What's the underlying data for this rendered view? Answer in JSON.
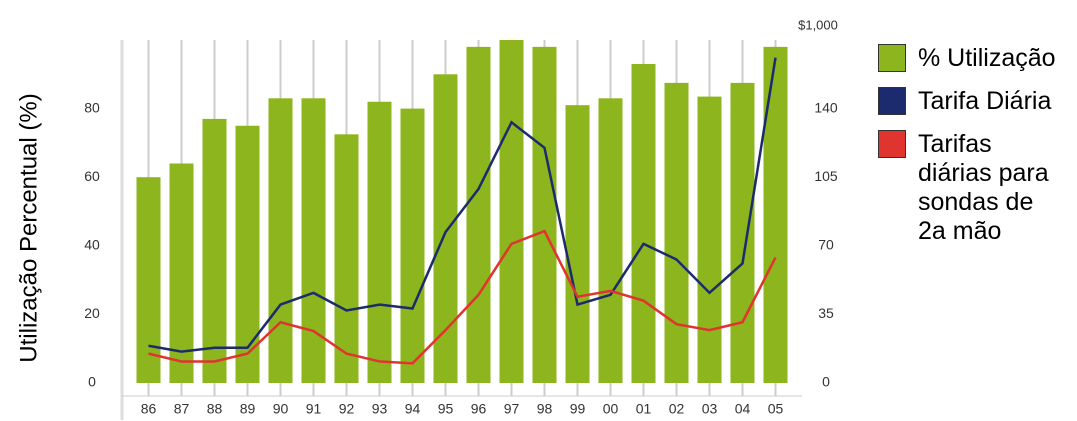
{
  "chart_data": {
    "type": "bar",
    "y_label": "Utilização Percentual (%)",
    "y2_unit_label": "$1,000",
    "categories": [
      "86",
      "87",
      "88",
      "89",
      "90",
      "91",
      "92",
      "93",
      "94",
      "95",
      "96",
      "97",
      "98",
      "99",
      "00",
      "01",
      "02",
      "03",
      "04",
      "05"
    ],
    "series": [
      {
        "name": "% Utilização",
        "type": "bar",
        "color": "#8db51d",
        "axis": "y",
        "values": [
          60,
          64,
          77,
          75,
          83,
          83,
          72.5,
          82,
          80,
          90,
          98,
          100,
          98,
          81,
          83,
          93,
          87.5,
          83.5,
          87.5,
          98
        ]
      },
      {
        "name": "Tarifa Diária",
        "type": "line",
        "color": "#1c2a6e",
        "axis": "y2",
        "values": [
          19,
          16,
          18,
          18,
          40,
          46,
          37,
          40,
          38,
          77,
          99,
          133,
          120,
          40,
          45,
          71,
          63,
          46,
          61,
          166
        ]
      },
      {
        "name": "Tarifas diárias para sondas de 2a mão",
        "type": "line",
        "color": "#e0342e",
        "axis": "y2",
        "values": [
          15,
          11,
          11,
          15,
          31,
          26.5,
          15,
          11,
          10,
          27,
          45,
          71,
          77.5,
          44,
          47,
          42,
          30,
          27,
          31,
          64
        ]
      }
    ],
    "ylim": [
      0,
      100
    ],
    "yticks": [
      0,
      20,
      40,
      60,
      80
    ],
    "y2lim": [
      0,
      175
    ],
    "y2ticks": [
      0,
      35,
      70,
      105,
      140
    ],
    "grid": true,
    "legend": "right"
  }
}
